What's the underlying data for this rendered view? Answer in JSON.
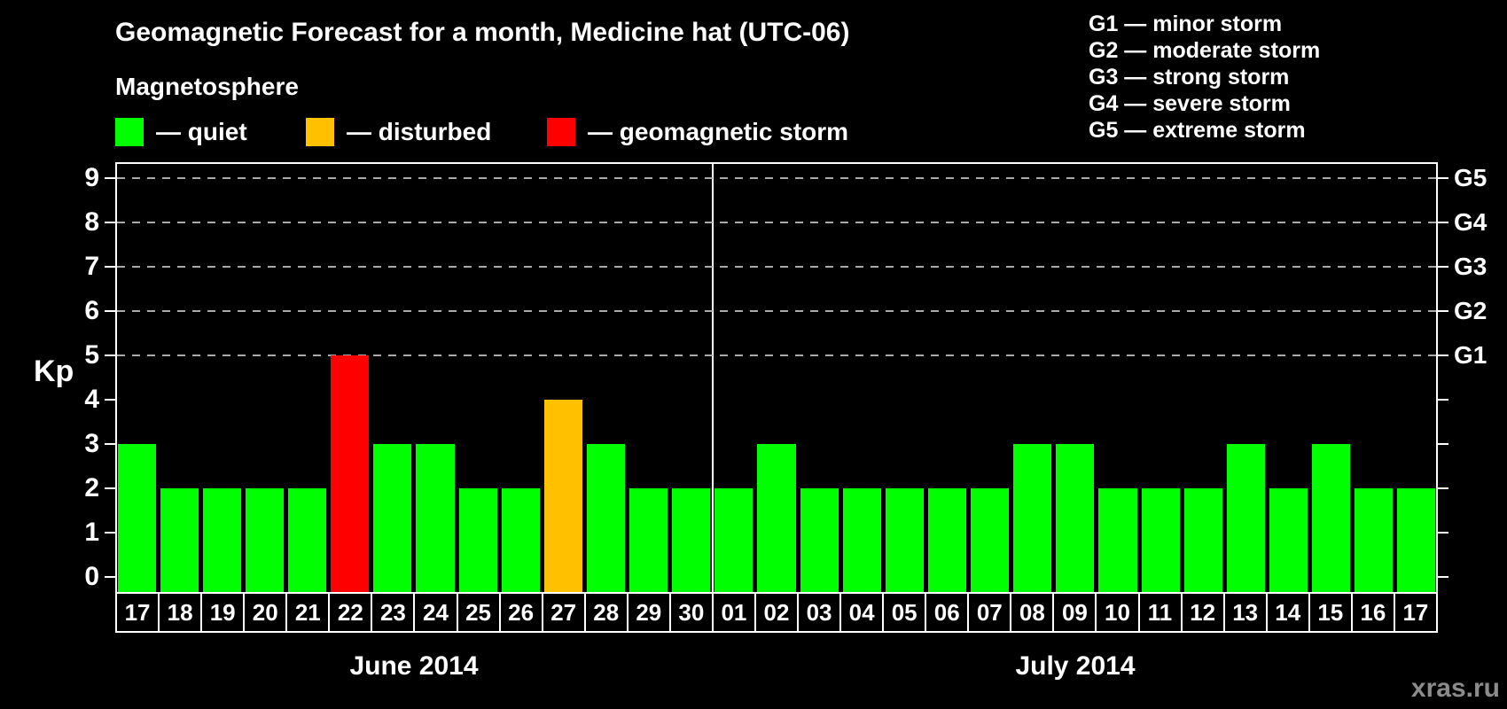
{
  "title": "Geomagnetic Forecast for a month, Medicine hat (UTC-06)",
  "legend": {
    "title": "Magnetosphere",
    "items": [
      {
        "name": "quiet",
        "label": "— quiet",
        "color": "#00ff00"
      },
      {
        "name": "disturbed",
        "label": "— disturbed",
        "color": "#ffc000"
      },
      {
        "name": "storm",
        "label": "— geomagnetic storm",
        "color": "#ff0000"
      }
    ]
  },
  "g_legend": {
    "items": [
      "G1 — minor storm",
      "G2 — moderate storm",
      "G3 — strong storm",
      "G4 — severe storm",
      "G5 — extreme storm"
    ]
  },
  "watermark": "xras.ru",
  "chart_data": {
    "type": "bar",
    "title": "Geomagnetic Forecast for a month, Medicine hat (UTC-06)",
    "ylabel": "Kp",
    "ylim": [
      0,
      9.35
    ],
    "yticks": [
      0,
      1,
      2,
      3,
      4,
      5,
      6,
      7,
      8,
      9
    ],
    "gridlines_at": [
      5,
      6,
      7,
      8,
      9
    ],
    "grid": "dashed horizontal at storm levels only",
    "right_axis_labels": {
      "5": "G1",
      "6": "G2",
      "7": "G3",
      "8": "G4",
      "9": "G5"
    },
    "legend_position": "top-left",
    "months": [
      {
        "label": "June 2014",
        "days": 14
      },
      {
        "label": "July 2014",
        "days": 17
      }
    ],
    "categories": [
      "17",
      "18",
      "19",
      "20",
      "21",
      "22",
      "23",
      "24",
      "25",
      "26",
      "27",
      "28",
      "29",
      "30",
      "01",
      "02",
      "03",
      "04",
      "05",
      "06",
      "07",
      "08",
      "09",
      "10",
      "11",
      "12",
      "13",
      "14",
      "15",
      "16",
      "17"
    ],
    "values": [
      3,
      2,
      2,
      2,
      2,
      5,
      3,
      3,
      2,
      2,
      4,
      3,
      2,
      2,
      2,
      3,
      2,
      2,
      2,
      2,
      2,
      3,
      3,
      2,
      2,
      2,
      3,
      2,
      3,
      2,
      2
    ],
    "statuses": [
      "quiet",
      "quiet",
      "quiet",
      "quiet",
      "quiet",
      "storm",
      "quiet",
      "quiet",
      "quiet",
      "quiet",
      "disturbed",
      "quiet",
      "quiet",
      "quiet",
      "quiet",
      "quiet",
      "quiet",
      "quiet",
      "quiet",
      "quiet",
      "quiet",
      "quiet",
      "quiet",
      "quiet",
      "quiet",
      "quiet",
      "quiet",
      "quiet",
      "quiet",
      "quiet",
      "quiet"
    ],
    "status_colors": {
      "quiet": "#00ff00",
      "disturbed": "#ffc000",
      "storm": "#ff0000"
    }
  }
}
